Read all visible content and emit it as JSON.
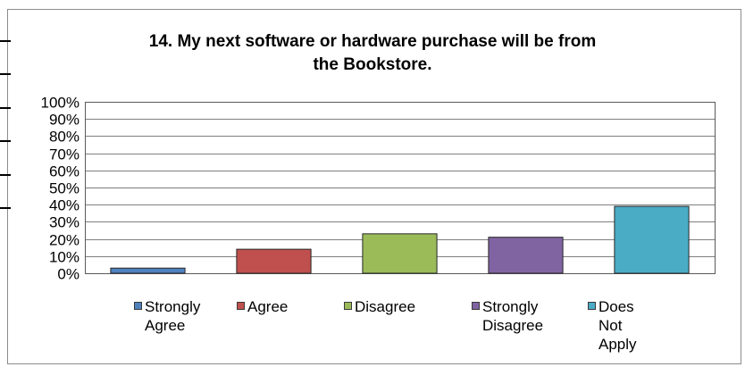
{
  "chart_data": {
    "type": "bar",
    "title": "14. My next software or hardware purchase will be from\nthe Bookstore.",
    "categories": [
      "Strongly Agree",
      "Agree",
      "Disagree",
      "Strongly Disagree",
      "Does Not Apply"
    ],
    "values": [
      3,
      14,
      23,
      21,
      39
    ],
    "value_unit": "%",
    "ylim": [
      0,
      100
    ],
    "yticks": [
      "0%",
      "10%",
      "20%",
      "30%",
      "40%",
      "50%",
      "60%",
      "70%",
      "80%",
      "90%",
      "100%"
    ],
    "xlabel": "",
    "ylabel": "",
    "grid": true,
    "legend_position": "bottom",
    "colors": [
      "#4f81bd",
      "#c0504d",
      "#9bbb59",
      "#8064a2",
      "#4bacc6"
    ],
    "legend": [
      {
        "label": "Strongly\nAgree",
        "color": "#4f81bd"
      },
      {
        "label": "Agree",
        "color": "#c0504d"
      },
      {
        "label": "Disagree",
        "color": "#9bbb59"
      },
      {
        "label": "Strongly\nDisagree",
        "color": "#8064a2"
      },
      {
        "label": "Does Not\nApply",
        "color": "#4bacc6"
      }
    ]
  }
}
